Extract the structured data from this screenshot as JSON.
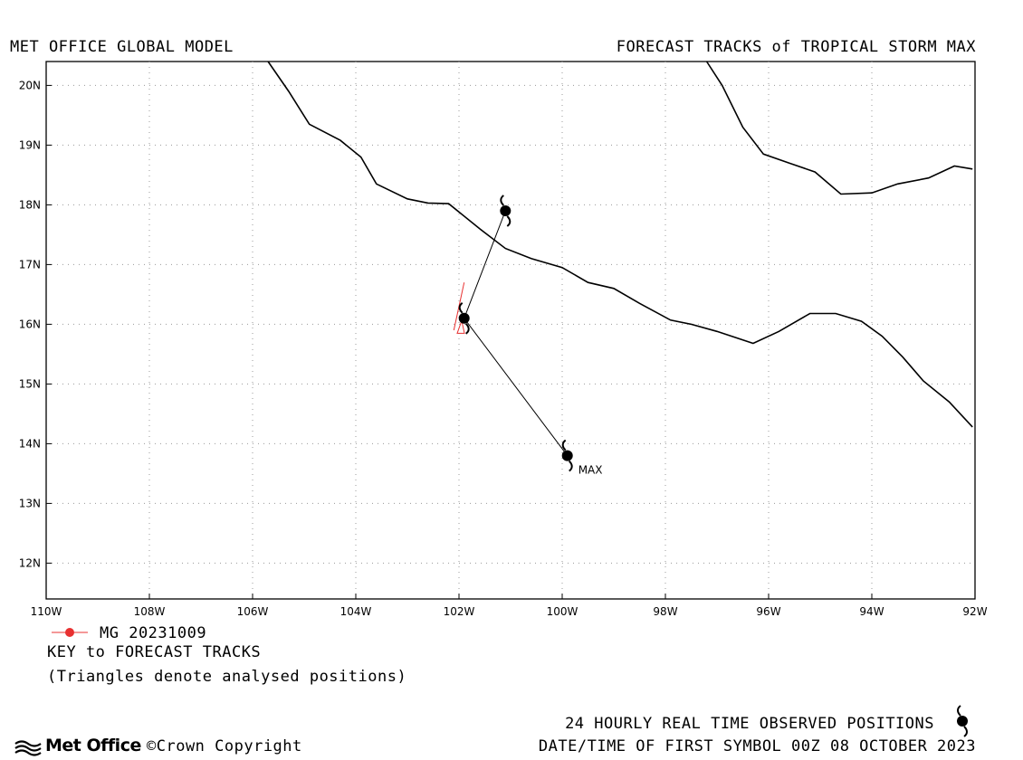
{
  "header": {
    "left_title": "MET OFFICE GLOBAL MODEL",
    "right_title": "FORECAST TRACKS of TROPICAL STORM MAX"
  },
  "map": {
    "lon_range": [
      -110,
      -92
    ],
    "lat_range": [
      11.4,
      20.4
    ],
    "x_ticks": [
      "110W",
      "108W",
      "106W",
      "104W",
      "102W",
      "100W",
      "98W",
      "96W",
      "94W",
      "92W"
    ],
    "y_ticks": [
      "12N",
      "13N",
      "14N",
      "15N",
      "16N",
      "17N",
      "18N",
      "19N",
      "20N"
    ],
    "grid": "dotted",
    "storm_label": "MAX",
    "observed_track": [
      {
        "lon": -101.1,
        "lat": 17.9
      },
      {
        "lon": -101.9,
        "lat": 16.1
      },
      {
        "lon": -99.9,
        "lat": 13.8
      }
    ],
    "forecast_track_color": "#e83030",
    "forecast_track": [
      {
        "lon": -102.1,
        "lat": 15.9
      },
      {
        "lon": -101.9,
        "lat": 16.7
      }
    ],
    "analysed_position": {
      "lon": -102.0,
      "lat": 16.0
    },
    "coastlines": [
      [
        [
          -105.7,
          20.4
        ],
        [
          -105.3,
          19.9
        ],
        [
          -104.9,
          19.35
        ],
        [
          -104.3,
          19.08
        ],
        [
          -103.9,
          18.8
        ],
        [
          -103.6,
          18.35
        ],
        [
          -103.0,
          18.1
        ],
        [
          -102.6,
          18.03
        ],
        [
          -102.2,
          18.02
        ],
        [
          -101.6,
          17.6
        ],
        [
          -101.1,
          17.27
        ],
        [
          -100.6,
          17.1
        ],
        [
          -100.0,
          16.95
        ],
        [
          -99.5,
          16.7
        ],
        [
          -99.0,
          16.6
        ],
        [
          -98.5,
          16.35
        ],
        [
          -97.9,
          16.07
        ],
        [
          -97.5,
          16.0
        ],
        [
          -97.0,
          15.88
        ],
        [
          -96.3,
          15.68
        ],
        [
          -95.8,
          15.88
        ],
        [
          -95.2,
          16.18
        ],
        [
          -94.7,
          16.18
        ],
        [
          -94.2,
          16.05
        ],
        [
          -93.8,
          15.8
        ],
        [
          -93.4,
          15.45
        ],
        [
          -93.0,
          15.05
        ],
        [
          -92.5,
          14.7
        ],
        [
          -92.05,
          14.28
        ]
      ],
      [
        [
          -97.2,
          20.4
        ],
        [
          -96.9,
          20.0
        ],
        [
          -96.5,
          19.3
        ],
        [
          -96.1,
          18.85
        ],
        [
          -95.6,
          18.7
        ],
        [
          -95.1,
          18.55
        ],
        [
          -94.6,
          18.18
        ],
        [
          -94.0,
          18.2
        ],
        [
          -93.5,
          18.35
        ],
        [
          -92.9,
          18.45
        ],
        [
          -92.4,
          18.65
        ],
        [
          -92.05,
          18.6
        ]
      ]
    ]
  },
  "legend": {
    "model_entry": "MG 20231009",
    "key_title": "KEY to FORECAST TRACKS",
    "note": "(Triangles denote analysed positions)"
  },
  "footer": {
    "observed_label": "24 HOURLY REAL TIME OBSERVED POSITIONS",
    "first_symbol": "DATE/TIME OF FIRST SYMBOL 00Z 08 OCTOBER 2023",
    "brand": "Met Office",
    "copyright": "©Crown Copyright"
  }
}
